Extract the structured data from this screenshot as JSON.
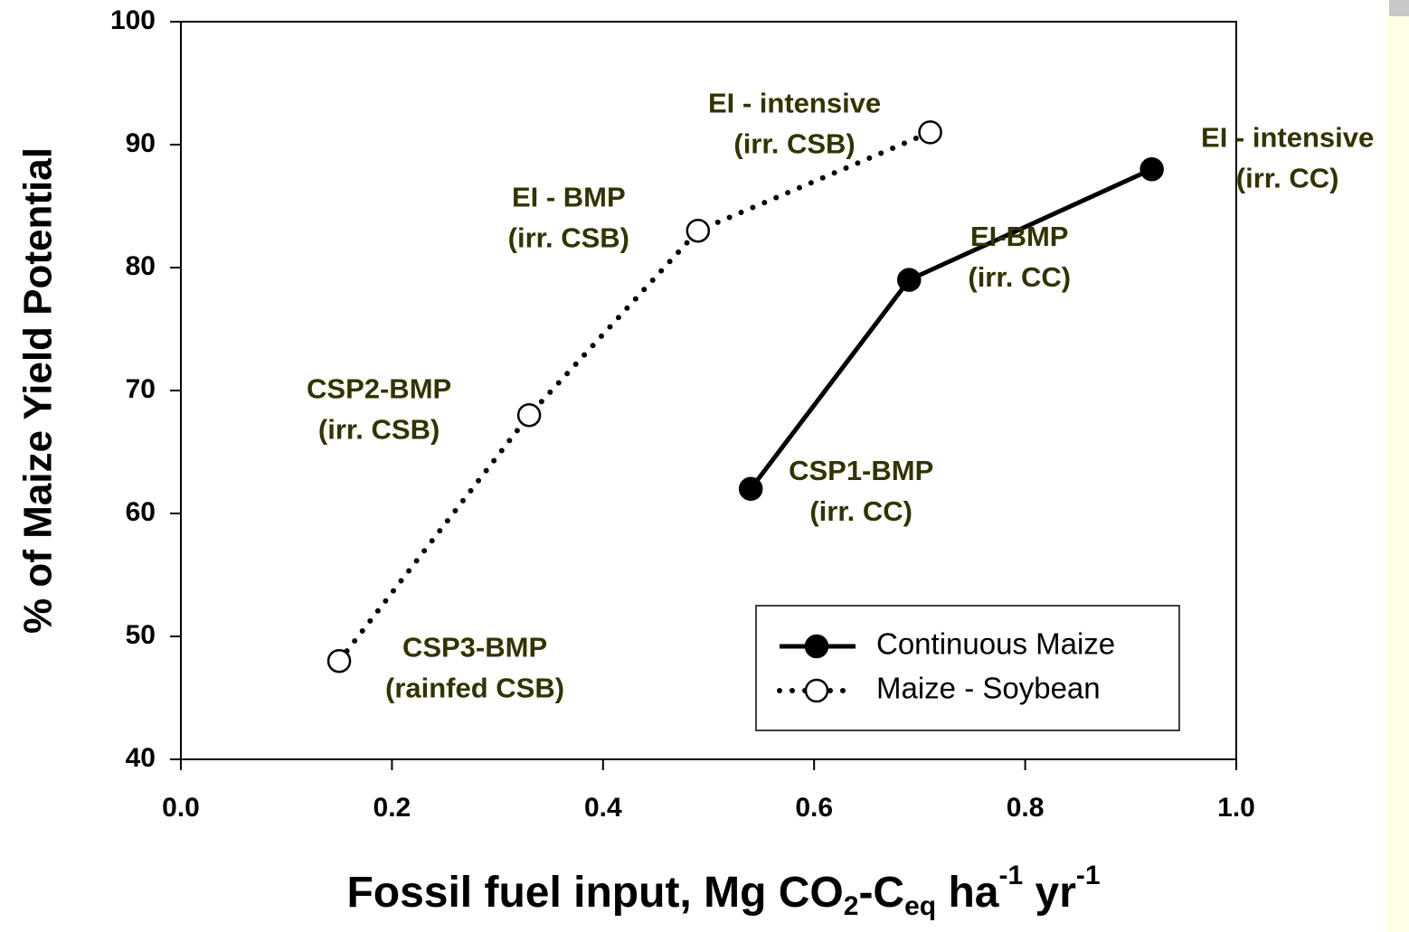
{
  "chart_data": {
    "type": "line",
    "x_label": [
      "Fossil fuel input, Mg CO",
      "2",
      "-C",
      "eq",
      " ha",
      "-1",
      " yr",
      "-1"
    ],
    "y_label": "% of Maize Yield Potential",
    "xlim": [
      0,
      1.0
    ],
    "xticks": [
      {
        "value": 0,
        "label": "0.0"
      },
      0.2,
      0.4,
      0.6,
      0.8,
      {
        "value": 1.0,
        "label": "1.0"
      }
    ],
    "ylim": [
      40,
      100
    ],
    "yticks": [
      40,
      50,
      60,
      70,
      80,
      90,
      100
    ],
    "legend": "lower right",
    "series": [
      {
        "name": "Continuous Maize",
        "color": "#000000",
        "line": "solid",
        "marker": "filled",
        "x": [
          0.54,
          0.69,
          0.92
        ],
        "values": [
          62,
          79,
          88
        ],
        "point_labels": [
          [
            "CSP1-BMP",
            "(irr. CC)"
          ],
          [
            "EI-BMP",
            "(irr. CC)"
          ],
          [
            "EI - intensive",
            "(irr. CC)"
          ]
        ]
      },
      {
        "name": "Maize - Soybean",
        "color": "#000000",
        "line": "dotted",
        "marker": "open",
        "x": [
          0.15,
          0.33,
          0.49,
          0.71
        ],
        "values": [
          48,
          68,
          83,
          91
        ],
        "point_labels": [
          [
            "CSP3-BMP",
            "(rainfed CSB)"
          ],
          [
            "CSP2-BMP",
            "(irr. CSB)"
          ],
          [
            "EI - BMP",
            "(irr. CSB)"
          ],
          [
            "EI - intensive",
            "(irr. CSB)"
          ]
        ]
      }
    ]
  }
}
